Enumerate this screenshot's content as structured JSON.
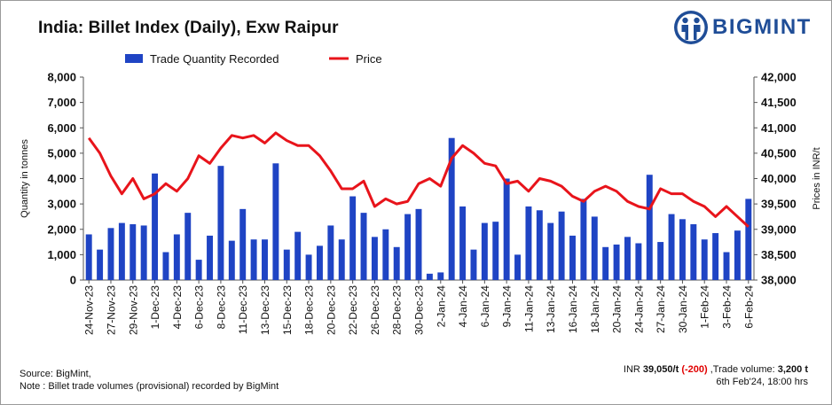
{
  "title": "India: Billet Index (Daily), Exw Raipur",
  "logo": {
    "text": "BIGMINT",
    "icon": "bigmint-people-icon"
  },
  "footer": {
    "source": "Source: BigMint,",
    "note": "Note : Billet trade volumes (provisional) recorded by BigMint",
    "summary_prefix": "INR ",
    "summary_price": "39,050/t",
    "summary_change": "(-200)",
    "summary_mid": " ,Trade volume: ",
    "summary_volume": "3,200 t",
    "timestamp": "6th Feb'24, 18:00 hrs"
  },
  "colors": {
    "bar": "#1f44c4",
    "line": "#e8141b",
    "logo": "#1f4d97"
  },
  "chart_data": {
    "type": "bar",
    "title": "India: Billet Index (Daily), Exw Raipur",
    "ylabel": "Quantity in tonnes",
    "y2label": "Prices in INR/t",
    "ylim": [
      0,
      8000
    ],
    "y2lim": [
      38000,
      42000
    ],
    "yticks": [
      "0",
      "1,000",
      "2,000",
      "3,000",
      "4,000",
      "5,000",
      "6,000",
      "7,000",
      "8,000"
    ],
    "y2ticks": [
      "38,000",
      "38,500",
      "39,000",
      "39,500",
      "40,000",
      "40,500",
      "41,000",
      "41,500",
      "42,000"
    ],
    "grid": false,
    "legend": "top",
    "xtick_labels": [
      "24-Nov-23",
      "27-Nov-23",
      "29-Nov-23",
      "1-Dec-23",
      "4-Dec-23",
      "6-Dec-23",
      "8-Dec-23",
      "11-Dec-23",
      "13-Dec-23",
      "15-Dec-23",
      "18-Dec-23",
      "20-Dec-23",
      "22-Dec-23",
      "26-Dec-23",
      "28-Dec-23",
      "30-Dec-23",
      "2-Jan-24",
      "4-Jan-24",
      "6-Jan-24",
      "9-Jan-24",
      "11-Jan-24",
      "13-Jan-24",
      "16-Jan-24",
      "18-Jan-24",
      "20-Jan-24",
      "24-Jan-24",
      "27-Jan-24",
      "30-Jan-24",
      "1-Feb-24",
      "3-Feb-24",
      "6-Feb-24"
    ],
    "series": [
      {
        "name": "Trade Quantity Recorded",
        "type": "bar",
        "axis": "left",
        "values": [
          1800,
          1200,
          2050,
          2250,
          2200,
          2150,
          4200,
          1100,
          1800,
          2650,
          800,
          1750,
          4500,
          1550,
          2800,
          1600,
          1600,
          4600,
          1200,
          1900,
          1000,
          1350,
          2150,
          1600,
          3300,
          2650,
          1700,
          2000,
          1300,
          2600,
          2800,
          250,
          300,
          5600,
          2900,
          1200,
          2250,
          2300,
          4000,
          1000,
          2900,
          2750,
          2250,
          2700,
          1750,
          3200,
          2500,
          1300,
          1400,
          1700,
          1450,
          4150,
          1500,
          2600,
          2400,
          2200,
          1600,
          1850,
          1100,
          1950,
          3200
        ]
      },
      {
        "name": "Price",
        "type": "line",
        "axis": "right",
        "values": [
          40800,
          40500,
          40050,
          39700,
          40000,
          39600,
          39700,
          39900,
          39750,
          40000,
          40450,
          40300,
          40600,
          40850,
          40800,
          40850,
          40700,
          40900,
          40750,
          40650,
          40650,
          40450,
          40150,
          39800,
          39800,
          39950,
          39450,
          39600,
          39500,
          39550,
          39900,
          40000,
          39850,
          40400,
          40650,
          40500,
          40300,
          40250,
          39900,
          39950,
          39750,
          40000,
          39950,
          39850,
          39650,
          39550,
          39750,
          39850,
          39750,
          39550,
          39450,
          39400,
          39800,
          39700,
          39700,
          39550,
          39450,
          39250,
          39450,
          39250,
          39050
        ]
      }
    ]
  }
}
